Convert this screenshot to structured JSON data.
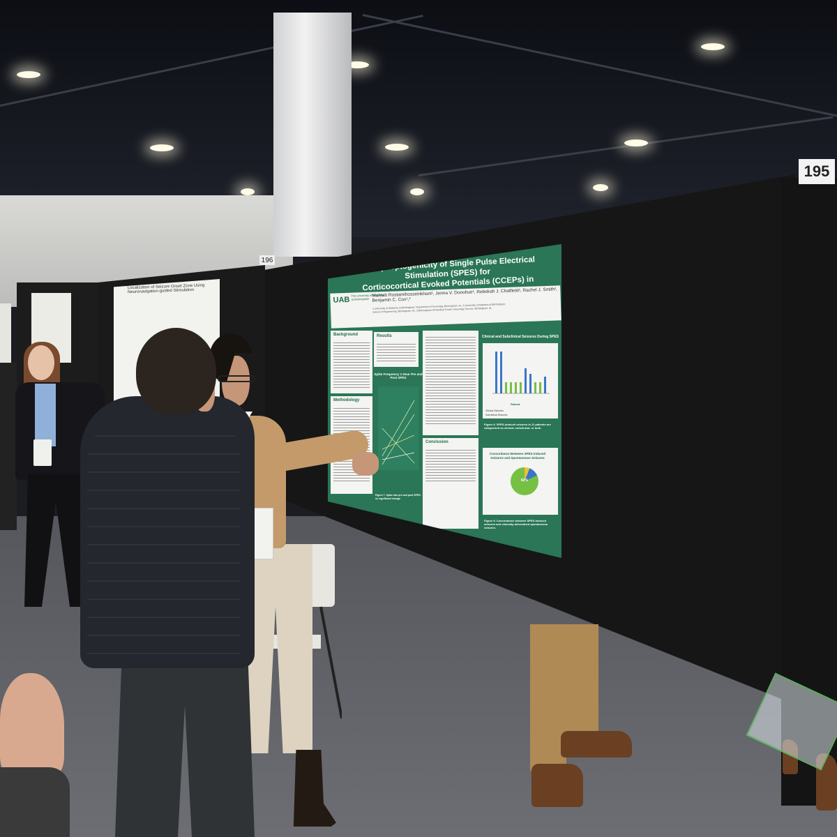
{
  "booth_numbers": {
    "main": "195",
    "left": "196"
  },
  "poster": {
    "title_line1": "The Epileptogenicity of Single Pulse Electrical Stimulation (SPES) for",
    "title_line2": "Corticocortical Evoked Potentials (CCEPs) in Stereotactic EEG",
    "logo": "UAB",
    "logo_sub": "The University of Alabama at Birmingham",
    "authors": "Mahtab Rostamihosseinkhani¹, Jenna V. Donohue¹, Rebekah J. Chatfield², Rachel J. Smith², Benjamin C. Cox¹,³",
    "affiliations": "1.University of Alabama at Birmingham, Department of Neurology, Birmingham, AL; 2.University of Alabama at Birmingham, School of Engineering, Birmingham, AL; 3.Birmingham VA Medical Center, Neurology Service, Birmingham, AL",
    "sections": {
      "background": "Background",
      "results": "Results",
      "methodology": "Methodology",
      "conclusion": "Conclusion"
    },
    "line_chart_title": "Spike Frequency 1 Hour Pre and Post SPES",
    "line_chart_caption": "Figure 7. Spike rate pre and post SPES; no significant change",
    "bar_chart_title": "Clinical and Subclinical Seizures During SPES",
    "bar_chart_legend_1": "Clinical Seizures",
    "bar_chart_legend_2": "Subclinical Seizures",
    "bar_chart_xlabel": "Patients",
    "fig8_caption": "Figure 8. SPES-induced seizures in 11 patients are categorized as clinical, subclinical, or both.",
    "pie_title": "Concordance Between SPES Induced Seizures and Spontaneous Seizures",
    "pie_label": "82%",
    "fig9_caption": "Figure 9. Concordance between SPES-induced seizures and clinically-determined spontaneous seizures."
  },
  "left_poster": {
    "title": "Localization of Seizure Onset Zone Using Neuronavigation-guided Stimulation"
  },
  "colors": {
    "poster_green": "#2a7656",
    "board": "#161616",
    "chart_blue": "#3b75c8",
    "chart_green": "#76c043"
  }
}
